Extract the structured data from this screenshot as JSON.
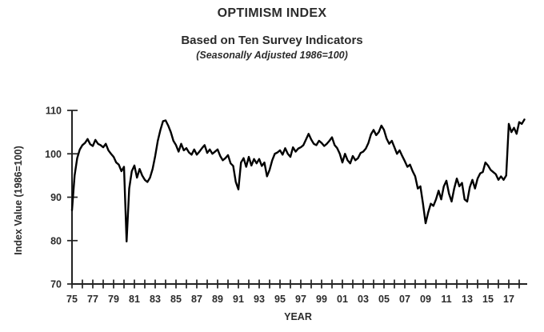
{
  "chart_data": {
    "type": "line",
    "title": "OPTIMISM INDEX",
    "subtitle": "Based on Ten Survey Indicators",
    "note": "(Seasonally Adjusted 1986=100)",
    "xlabel": "YEAR",
    "ylabel": "Index Value (1986=100)",
    "ylim": [
      70,
      110
    ],
    "xlim": [
      1975,
      2018.9
    ],
    "y_ticks": [
      70,
      80,
      90,
      100,
      110
    ],
    "x_tick_first_year": 1975,
    "x_tick_last_year": 2018,
    "x_tick_interval_years": 1,
    "x_label_years": [
      1975,
      1977,
      1979,
      1981,
      1983,
      1985,
      1987,
      1989,
      1991,
      1993,
      1995,
      1997,
      1999,
      2001,
      2003,
      2005,
      2007,
      2009,
      2011,
      2013,
      2015,
      2017
    ],
    "x_tick_labels": [
      "75",
      "77",
      "79",
      "81",
      "83",
      "85",
      "87",
      "89",
      "91",
      "93",
      "95",
      "97",
      "99",
      "01",
      "03",
      "05",
      "07",
      "09",
      "11",
      "13",
      "15",
      "17"
    ],
    "grid": false,
    "legend": "none",
    "line_color": "#000000",
    "axis_color": "#222222",
    "series": [
      {
        "name": "Optimism Index",
        "x_start": 1975.0,
        "x_step": 0.25,
        "values": [
          87.0,
          95.0,
          99.0,
          101.0,
          102.0,
          102.5,
          103.4,
          102.2,
          101.8,
          103.2,
          102.3,
          102.0,
          101.5,
          102.3,
          100.8,
          100.0,
          99.3,
          98.0,
          97.5,
          96.0,
          97.0,
          79.8,
          92.0,
          96.0,
          97.3,
          94.5,
          96.5,
          95.0,
          94.0,
          93.5,
          94.5,
          96.5,
          99.5,
          103.0,
          105.5,
          107.5,
          107.7,
          106.5,
          105.0,
          103.0,
          102.0,
          100.5,
          102.3,
          100.8,
          101.3,
          100.3,
          99.8,
          101.0,
          99.8,
          100.5,
          101.3,
          102.0,
          100.2,
          101.0,
          100.0,
          100.5,
          101.0,
          99.5,
          98.5,
          99.0,
          99.7,
          97.8,
          97.2,
          93.5,
          91.8,
          98.0,
          99.0,
          97.0,
          99.3,
          97.3,
          98.8,
          97.8,
          98.8,
          97.2,
          98.0,
          94.8,
          96.3,
          98.5,
          100.0,
          100.3,
          100.8,
          99.8,
          101.3,
          100.0,
          99.3,
          101.5,
          100.5,
          101.2,
          101.5,
          102.0,
          103.3,
          104.6,
          103.3,
          102.3,
          102.0,
          103.0,
          102.5,
          101.8,
          102.3,
          103.0,
          103.8,
          102.0,
          101.3,
          100.0,
          98.0,
          100.0,
          98.5,
          97.8,
          99.5,
          98.5,
          99.0,
          100.2,
          100.5,
          101.2,
          102.5,
          104.5,
          105.5,
          104.3,
          105.0,
          106.5,
          105.5,
          103.5,
          102.3,
          103.0,
          101.5,
          100.0,
          100.8,
          99.5,
          98.3,
          97.0,
          97.5,
          96.0,
          94.8,
          92.0,
          92.5,
          88.5,
          84.0,
          86.5,
          88.5,
          88.0,
          89.5,
          91.5,
          89.5,
          92.5,
          93.8,
          90.8,
          89.0,
          92.0,
          94.3,
          92.5,
          93.3,
          89.5,
          89.0,
          92.3,
          94.0,
          92.0,
          94.3,
          95.5,
          95.8,
          98.0,
          97.3,
          96.3,
          95.8,
          95.3,
          94.0,
          94.8,
          94.0,
          95.0,
          106.9,
          105.0,
          106.0,
          104.6,
          107.3,
          106.9,
          107.9
        ]
      }
    ]
  }
}
